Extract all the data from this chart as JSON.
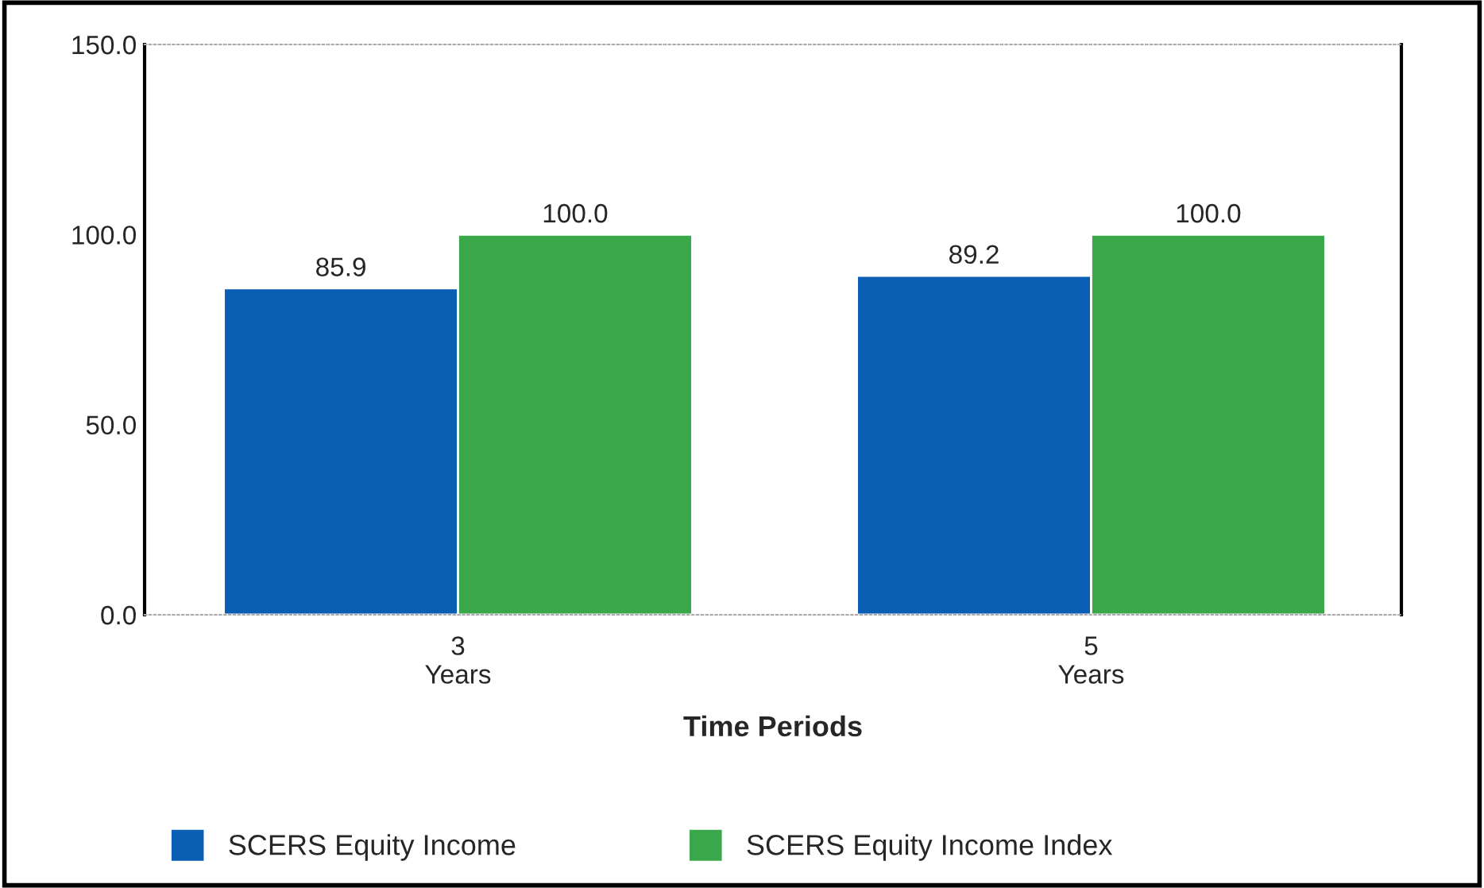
{
  "chart_data": {
    "type": "bar",
    "xlabel": "Time Periods",
    "categories": [
      "3\nYears",
      "5\nYears"
    ],
    "series": [
      {
        "name": "SCERS Equity Income",
        "color": "#0a5fb4",
        "values": [
          85.9,
          89.2
        ],
        "value_labels": [
          "85.9",
          "89.2"
        ]
      },
      {
        "name": "SCERS Equity Income Index",
        "color": "#3aa84a",
        "values": [
          100.0,
          100.0
        ],
        "value_labels": [
          "100.0",
          "100.0"
        ]
      }
    ],
    "ylim": [
      0,
      150
    ],
    "yticks": [
      {
        "value": 0,
        "label": "0.0"
      },
      {
        "value": 50,
        "label": "50.0"
      },
      {
        "value": 100,
        "label": "100.0"
      },
      {
        "value": 150,
        "label": "150.0"
      }
    ],
    "legend": "bottom",
    "grid": false
  }
}
